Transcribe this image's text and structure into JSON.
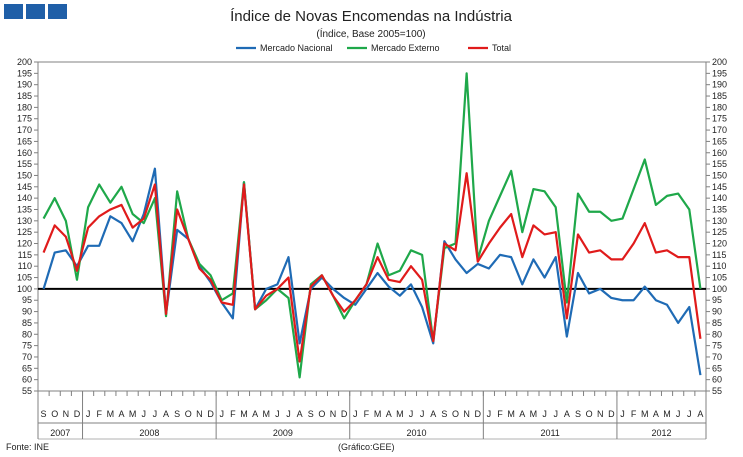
{
  "header": {
    "logo": "GEE logo"
  },
  "chart_data": {
    "type": "line",
    "title": "Índice de Novas Encomendas na Indústria",
    "subtitle": "(Índice, Base 2005=100)",
    "ylim": [
      55,
      200
    ],
    "ytick_step": 5,
    "reference_line": 100,
    "months": [
      "S",
      "O",
      "N",
      "D",
      "J",
      "F",
      "M",
      "A",
      "M",
      "J",
      "J",
      "A",
      "S",
      "O",
      "N",
      "D",
      "J",
      "F",
      "M",
      "A",
      "M",
      "J",
      "J",
      "A",
      "S",
      "O",
      "N",
      "D",
      "J",
      "F",
      "M",
      "A",
      "M",
      "J",
      "J",
      "A",
      "S",
      "O",
      "N",
      "D",
      "J",
      "F",
      "M",
      "A",
      "M",
      "J",
      "J",
      "A",
      "S",
      "O",
      "N",
      "D",
      "J",
      "F",
      "M",
      "A",
      "M",
      "J",
      "J",
      "A"
    ],
    "years": [
      {
        "label": "2007",
        "start": 0,
        "count": 4
      },
      {
        "label": "2008",
        "start": 4,
        "count": 12
      },
      {
        "label": "2009",
        "start": 16,
        "count": 12
      },
      {
        "label": "2010",
        "start": 28,
        "count": 12
      },
      {
        "label": "2011",
        "start": 40,
        "count": 12
      },
      {
        "label": "2012",
        "start": 52,
        "count": 8
      }
    ],
    "series": [
      {
        "name": "Mercado Nacional",
        "color": "#1f6bb5",
        "values": [
          100,
          116,
          117,
          110,
          119,
          119,
          132,
          129,
          121,
          133,
          153,
          89,
          126,
          122,
          110,
          103,
          94,
          87,
          147,
          91,
          100,
          102,
          114,
          76,
          100,
          105,
          100,
          96,
          93,
          100,
          107,
          101,
          97,
          102,
          92,
          76,
          121,
          113,
          107,
          111,
          109,
          115,
          114,
          102,
          113,
          105,
          114,
          79,
          107,
          98,
          100,
          96,
          95,
          95,
          101,
          95,
          93,
          85,
          92,
          62
        ]
      },
      {
        "name": "Mercado Externo",
        "color": "#1fa84a",
        "values": [
          131,
          140,
          130,
          104,
          136,
          146,
          138,
          145,
          133,
          129,
          140,
          88,
          143,
          122,
          111,
          106,
          95,
          98,
          147,
          91,
          95,
          100,
          96,
          61,
          102,
          106,
          97,
          87,
          95,
          102,
          120,
          106,
          108,
          117,
          115,
          77,
          118,
          120,
          195,
          113,
          130,
          141,
          152,
          125,
          144,
          143,
          136,
          94,
          142,
          134,
          134,
          130,
          131,
          144,
          157,
          137,
          141,
          142,
          135,
          100
        ]
      },
      {
        "name": "Total",
        "color": "#e01b1b",
        "values": [
          116,
          128,
          123,
          108,
          127,
          132,
          135,
          137,
          127,
          131,
          146,
          89,
          135,
          122,
          109,
          104,
          94,
          93,
          146,
          91,
          97,
          100,
          105,
          68,
          101,
          106,
          97,
          90,
          95,
          102,
          114,
          104,
          103,
          110,
          104,
          77,
          120,
          117,
          151,
          112,
          120,
          127,
          133,
          114,
          128,
          124,
          125,
          87,
          124,
          116,
          117,
          113,
          113,
          120,
          129,
          116,
          117,
          114,
          114,
          78
        ]
      }
    ]
  },
  "footer": {
    "source": "Fonte: INE",
    "credit": "(Gráfico:GEE)"
  }
}
